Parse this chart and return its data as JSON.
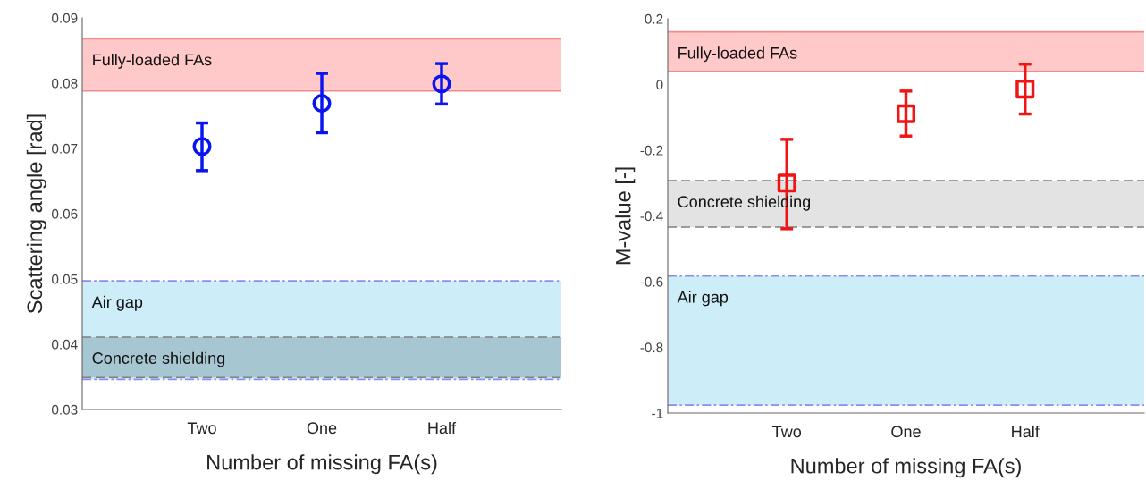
{
  "chart_data": [
    {
      "type": "scatter",
      "xlabel": "Number of missing FA(s)",
      "ylabel": "Scattering angle [rad]",
      "categories": [
        "Two",
        "One",
        "Half"
      ],
      "series": [
        {
          "color": "#0a14f0",
          "values": [
            0.0703,
            0.0769,
            0.0799
          ],
          "errors": [
            [
              0.0666,
              0.0739
            ],
            [
              0.0724,
              0.0815
            ],
            [
              0.0768,
              0.083
            ]
          ]
        }
      ],
      "ylim": [
        0.03,
        0.09
      ],
      "yticks": [
        0.03,
        0.04,
        0.05,
        0.06,
        0.07,
        0.08,
        0.09
      ],
      "marker": "circle",
      "grid": false,
      "legend": false,
      "bands": [
        {
          "axis": "y",
          "from": 0.0788,
          "to": 0.0868,
          "label": "Fully-loaded FAs",
          "color": "#ffc9c9"
        },
        {
          "axis": "y",
          "from": 0.0346,
          "to": 0.0497,
          "label": "Air gap",
          "color": "#cdeef9"
        },
        {
          "axis": "y",
          "from": 0.0349,
          "to": 0.0411,
          "label": "Concrete shielding",
          "color": "#a6c6d2"
        }
      ],
      "ref_lines": [
        {
          "axis": "y",
          "value": 0.0788,
          "color": "#f08c8c",
          "line_style": "solid"
        },
        {
          "axis": "y",
          "value": 0.0868,
          "color": "#f08c8c",
          "line_style": "solid"
        },
        {
          "axis": "y",
          "value": 0.0346,
          "color": "#8c8cf0",
          "line_style": "dashdot"
        },
        {
          "axis": "y",
          "value": 0.0497,
          "color": "#8c8cf0",
          "line_style": "dashdot"
        },
        {
          "axis": "y",
          "value": 0.0349,
          "color": "#808080",
          "line_style": "dashed"
        },
        {
          "axis": "y",
          "value": 0.0411,
          "color": "#808080",
          "line_style": "dashed"
        }
      ]
    },
    {
      "type": "scatter",
      "xlabel": "Number of missing FA(s)",
      "ylabel": "M-value [-]",
      "categories": [
        "Two",
        "One",
        "Half"
      ],
      "series": [
        {
          "color": "#f01414",
          "values": [
            -0.3,
            -0.089,
            -0.014
          ],
          "errors": [
            [
              -0.439,
              -0.167
            ],
            [
              -0.157,
              -0.02
            ],
            [
              -0.09,
              0.062
            ]
          ]
        }
      ],
      "ylim": [
        -1,
        0.2
      ],
      "yticks": [
        -1,
        -0.8,
        -0.6,
        -0.4,
        -0.2,
        0,
        0.2
      ],
      "marker": "square",
      "grid": false,
      "legend": false,
      "bands": [
        {
          "axis": "y",
          "from": 0.04,
          "to": 0.16,
          "label": "Fully-loaded FAs",
          "color": "#ffc9c9"
        },
        {
          "axis": "y",
          "from": -0.434,
          "to": -0.293,
          "label": "Concrete shielding",
          "color": "#e3e3e3"
        },
        {
          "axis": "y",
          "from": -0.976,
          "to": -0.583,
          "label": "Air gap",
          "color": "#cdeef9"
        }
      ],
      "ref_lines": [
        {
          "axis": "y",
          "value": 0.04,
          "color": "#f08c8c",
          "line_style": "solid"
        },
        {
          "axis": "y",
          "value": 0.16,
          "color": "#f08c8c",
          "line_style": "solid"
        },
        {
          "axis": "y",
          "value": -0.434,
          "color": "#808080",
          "line_style": "dashed"
        },
        {
          "axis": "y",
          "value": -0.293,
          "color": "#808080",
          "line_style": "dashed"
        },
        {
          "axis": "y",
          "value": -0.976,
          "color": "#8c8cf0",
          "line_style": "dashdot"
        },
        {
          "axis": "y",
          "value": -0.583,
          "color": "#8c8cf0",
          "line_style": "dashdot"
        }
      ]
    }
  ]
}
